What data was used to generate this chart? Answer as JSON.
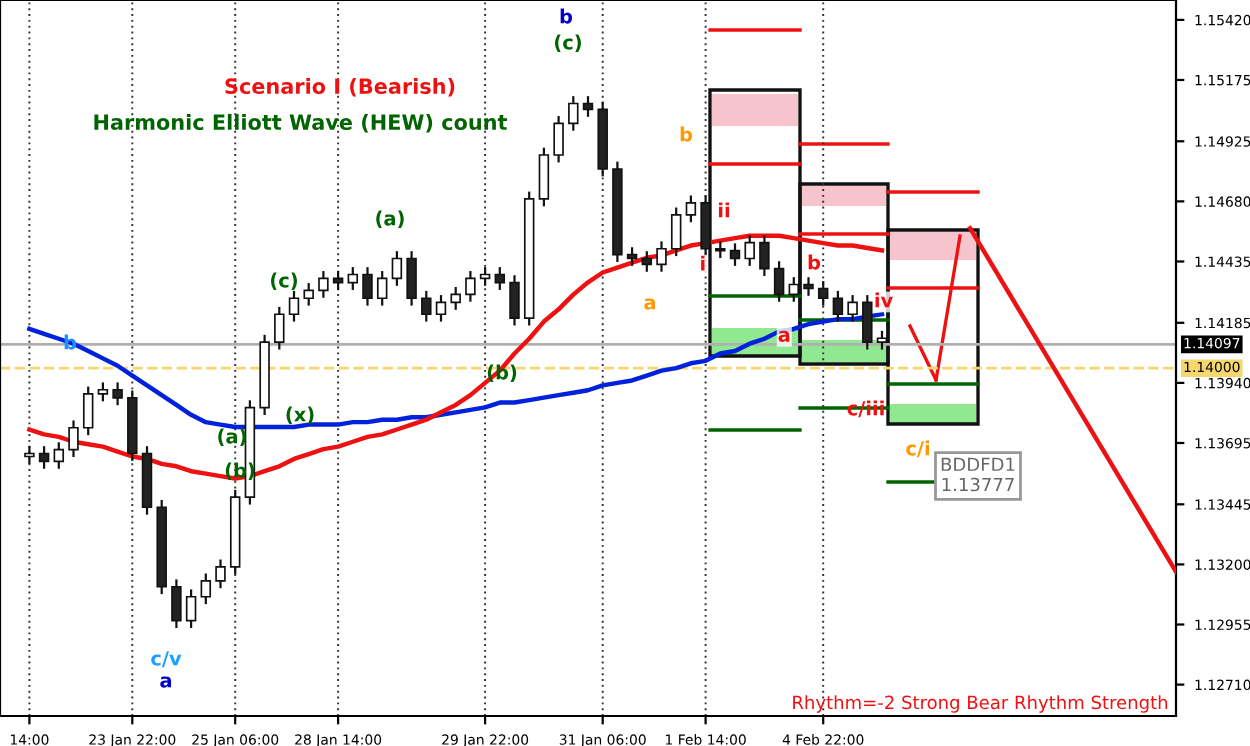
{
  "chart_data": {
    "type": "candlestick",
    "title": "Scenario I (Bearish)",
    "subtitle": "Harmonic Elliott Wave (HEW) count",
    "categories": [
      "14:00",
      null,
      null,
      null,
      null,
      null,
      null,
      "23 Jan 22:00",
      null,
      null,
      null,
      null,
      null,
      null,
      "25 Jan 06:00",
      null,
      null,
      null,
      null,
      null,
      null,
      "28 Jan 14:00",
      null,
      null,
      null,
      null,
      null,
      null,
      null,
      null,
      null,
      "29 Jan 22:00",
      null,
      null,
      null,
      null,
      null,
      null,
      null,
      "31 Jan 06:00",
      null,
      null,
      null,
      null,
      null,
      null,
      "1 Feb 14:00",
      null,
      null,
      null,
      null,
      null,
      null,
      null,
      "4 Feb 22:00",
      null,
      null,
      null,
      null,
      null,
      null,
      null,
      null,
      null,
      null,
      null,
      null,
      null,
      null,
      null,
      null,
      null,
      null,
      null,
      null,
      null,
      null,
      null,
      null
    ],
    "ohlc": [
      [
        1.1364,
        1.13682,
        1.1361,
        1.13652
      ],
      [
        1.13652,
        1.13682,
        1.1359,
        1.1362
      ],
      [
        1.1362,
        1.13698,
        1.1359,
        1.13668
      ],
      [
        1.13668,
        1.13787,
        1.13638,
        1.13757
      ],
      [
        1.13757,
        1.13925,
        1.13727,
        1.13895
      ],
      [
        1.13895,
        1.13942,
        1.13865,
        1.13912
      ],
      [
        1.13912,
        1.13942,
        1.13849,
        1.13879
      ],
      [
        1.13879,
        1.13909,
        1.13622,
        1.13652
      ],
      [
        1.13652,
        1.13682,
        1.13403,
        1.13433
      ],
      [
        1.13433,
        1.13463,
        1.13079,
        1.13109
      ],
      [
        1.13109,
        1.13139,
        1.12941,
        1.12971
      ],
      [
        1.12971,
        1.13098,
        1.12941,
        1.13068
      ],
      [
        1.13068,
        1.13163,
        1.13038,
        1.13133
      ],
      [
        1.13133,
        1.1322,
        1.13103,
        1.1319
      ],
      [
        1.1319,
        1.13504,
        1.1316,
        1.13474
      ],
      [
        1.13474,
        1.13869,
        1.13444,
        1.13839
      ],
      [
        1.13839,
        1.14136,
        1.13809,
        1.14106
      ],
      [
        1.14106,
        1.1425,
        1.14076,
        1.1422
      ],
      [
        1.1422,
        1.14315,
        1.1419,
        1.14285
      ],
      [
        1.14285,
        1.14347,
        1.14255,
        1.14317
      ],
      [
        1.14317,
        1.14396,
        1.14287,
        1.14366
      ],
      [
        1.14366,
        1.14396,
        1.14319,
        1.14349
      ],
      [
        1.14349,
        1.14412,
        1.14319,
        1.14382
      ],
      [
        1.14382,
        1.14412,
        1.14255,
        1.14285
      ],
      [
        1.14285,
        1.14396,
        1.14255,
        1.14366
      ],
      [
        1.14366,
        1.14477,
        1.14336,
        1.14447
      ],
      [
        1.14447,
        1.14477,
        1.14255,
        1.14285
      ],
      [
        1.14285,
        1.14315,
        1.1419,
        1.1422
      ],
      [
        1.1422,
        1.14298,
        1.1419,
        1.14268
      ],
      [
        1.14268,
        1.14331,
        1.14238,
        1.14301
      ],
      [
        1.14301,
        1.14396,
        1.14271,
        1.14366
      ],
      [
        1.14366,
        1.14412,
        1.14336,
        1.14382
      ],
      [
        1.14382,
        1.14412,
        1.14319,
        1.14349
      ],
      [
        1.14349,
        1.14379,
        1.14174,
        1.14204
      ],
      [
        1.14204,
        1.1472,
        1.14174,
        1.1469
      ],
      [
        1.1469,
        1.14899,
        1.1466,
        1.14869
      ],
      [
        1.14869,
        1.15028,
        1.14839,
        1.14998
      ],
      [
        1.14998,
        1.15109,
        1.14968,
        1.15079
      ],
      [
        1.15079,
        1.15109,
        1.15025,
        1.15055
      ],
      [
        1.15055,
        1.15085,
        1.14782,
        1.14812
      ],
      [
        1.14812,
        1.14842,
        1.14433,
        1.14463
      ],
      [
        1.14463,
        1.14493,
        1.14417,
        1.14447
      ],
      [
        1.14447,
        1.14477,
        1.14393,
        1.14423
      ],
      [
        1.14423,
        1.14517,
        1.14393,
        1.14487
      ],
      [
        1.14487,
        1.14655,
        1.14457,
        1.14625
      ],
      [
        1.14625,
        1.14704,
        1.14595,
        1.14674
      ],
      [
        1.14674,
        1.14704,
        1.14457,
        1.14487
      ],
      [
        1.14487,
        1.14517,
        1.14449,
        1.14479
      ],
      [
        1.14479,
        1.14509,
        1.14417,
        1.14447
      ],
      [
        1.14447,
        1.14542,
        1.14417,
        1.14512
      ],
      [
        1.14512,
        1.14542,
        1.14376,
        1.14406
      ],
      [
        1.14406,
        1.14436,
        1.14271,
        1.14301
      ],
      [
        1.14301,
        1.14371,
        1.14271,
        1.14341
      ],
      [
        1.14341,
        1.14371,
        1.14295,
        1.14325
      ],
      [
        1.14325,
        1.14355,
        1.14255,
        1.14285
      ],
      [
        1.14285,
        1.14315,
        1.1419,
        1.1422
      ],
      [
        1.1422,
        1.14298,
        1.1419,
        1.14268
      ],
      [
        1.14268,
        1.14298,
        1.14076,
        1.14106
      ],
      [
        1.14106,
        1.14152,
        1.14076,
        1.14122
      ],
      null,
      null,
      null,
      null,
      null,
      null,
      null,
      null,
      null,
      null,
      null,
      null,
      null,
      null,
      null,
      null,
      null,
      null,
      null,
      null
    ],
    "series": [
      {
        "type": "line",
        "color": "#0022dd",
        "values": [
          1.1416,
          1.1414,
          1.1412,
          1.141,
          1.1407,
          1.1404,
          1.1401,
          1.1397,
          1.1393,
          1.1389,
          1.1385,
          1.1381,
          1.1378,
          1.1377,
          1.1376,
          1.1376,
          1.1376,
          1.1376,
          1.1376,
          1.1377,
          1.1377,
          1.1377,
          1.1378,
          1.1378,
          1.1379,
          1.1379,
          1.138,
          1.138,
          1.1381,
          1.1382,
          1.1383,
          1.1384,
          1.1386,
          1.1386,
          1.1387,
          1.1388,
          1.1389,
          1.139,
          1.1391,
          1.1393,
          1.1394,
          1.1395,
          1.1397,
          1.1399,
          1.14,
          1.1402,
          1.1403,
          1.1406,
          1.1407,
          1.141,
          1.1412,
          1.1415,
          1.1416,
          1.1418,
          1.1419,
          1.142,
          1.142,
          1.1421,
          1.1422,
          null,
          null,
          null,
          null,
          null,
          null,
          null,
          null,
          null,
          null,
          null,
          null,
          null,
          null,
          null,
          null,
          null,
          null,
          null,
          null
        ]
      },
      {
        "type": "line",
        "color": "#ee1111",
        "values": [
          1.1375,
          1.1373,
          1.1372,
          1.137,
          1.1369,
          1.1368,
          1.1366,
          1.1364,
          1.1363,
          1.1361,
          1.136,
          1.1358,
          1.1357,
          1.1356,
          1.1355,
          1.1356,
          1.1358,
          1.136,
          1.1363,
          1.1365,
          1.1367,
          1.1368,
          1.137,
          1.1372,
          1.1373,
          1.1375,
          1.1377,
          1.1379,
          1.1382,
          1.1385,
          1.1389,
          1.1394,
          1.1399,
          1.1406,
          1.1412,
          1.1419,
          1.1424,
          1.143,
          1.1435,
          1.1439,
          1.1441,
          1.1443,
          1.1445,
          1.1446,
          1.1448,
          1.145,
          1.1451,
          1.1452,
          1.1453,
          1.1454,
          1.1454,
          1.1454,
          1.1453,
          1.1452,
          1.1451,
          1.145,
          1.145,
          1.1449,
          1.1448,
          null,
          null,
          null,
          null,
          null,
          null,
          null,
          null,
          null,
          null,
          null,
          null,
          null,
          null,
          null,
          null,
          null,
          null,
          null,
          null
        ]
      },
      {
        "type": "line",
        "color": "#ee1111",
        "values": [
          null,
          null,
          null,
          null,
          null,
          null,
          null,
          null,
          null,
          null,
          null,
          null,
          null,
          null,
          null,
          null,
          null,
          null,
          null,
          null,
          null,
          null,
          null,
          null,
          null,
          null,
          null,
          null,
          null,
          null,
          null,
          null,
          null,
          null,
          null,
          null,
          null,
          null,
          null,
          null,
          null,
          null,
          null,
          null,
          null,
          null,
          null,
          null,
          null,
          null,
          null,
          null,
          null,
          null,
          null,
          null,
          null,
          null,
          null,
          null,
          null,
          null,
          null,
          null,
          1.1457,
          null,
          null,
          null,
          null,
          null,
          null,
          null,
          null,
          null,
          null,
          null,
          null,
          null,
          1.1317
        ]
      }
    ],
    "ylim": [
      1.12582,
      1.15501
    ],
    "yticks": [
      {
        "value": 1.1542,
        "label": "1.15420"
      },
      {
        "value": 1.15175,
        "label": "1.15175"
      },
      {
        "value": 1.14925,
        "label": "1.14925"
      },
      {
        "value": 1.1468,
        "label": "1.14680"
      },
      {
        "value": 1.14435,
        "label": "1.14435"
      },
      {
        "value": 1.14185,
        "label": "1.14185"
      },
      {
        "value": 1.1394,
        "label": "1.13940"
      },
      {
        "value": 1.13695,
        "label": "1.13695"
      },
      {
        "value": 1.13445,
        "label": "1.13445"
      },
      {
        "value": 1.132,
        "label": "1.13200"
      },
      {
        "value": 1.12955,
        "label": "1.12955"
      },
      {
        "value": 1.1271,
        "label": "1.12710"
      }
    ],
    "ref_lines": [
      {
        "axis": "y",
        "value": 1.14097,
        "label": "1.14097",
        "color": "#b0b0b0",
        "line_style": "solid"
      },
      {
        "axis": "y",
        "value": 1.14,
        "label": "1.14000",
        "color": "#f5d76e",
        "line_style": "dashed"
      }
    ],
    "annotations": [
      "b",
      "c/v",
      "a",
      "(c)",
      "(a)",
      "(x)",
      "(a)",
      "(b)",
      "(b)",
      "b",
      "(c)",
      "b",
      "a",
      "ii",
      {
        "text": "i",
        "y": 1.1442
      },
      "b",
      {
        "text": "a",
        "y": 1.1413
      },
      {
        "text": "iv",
        "y": 1.1427
      },
      "c/iii",
      "c/i",
      "BDDFD1\n1.13777",
      "Rhythm=-2 Strong Bear Rhythm Strength"
    ],
    "grid": "x",
    "legend": false
  }
}
